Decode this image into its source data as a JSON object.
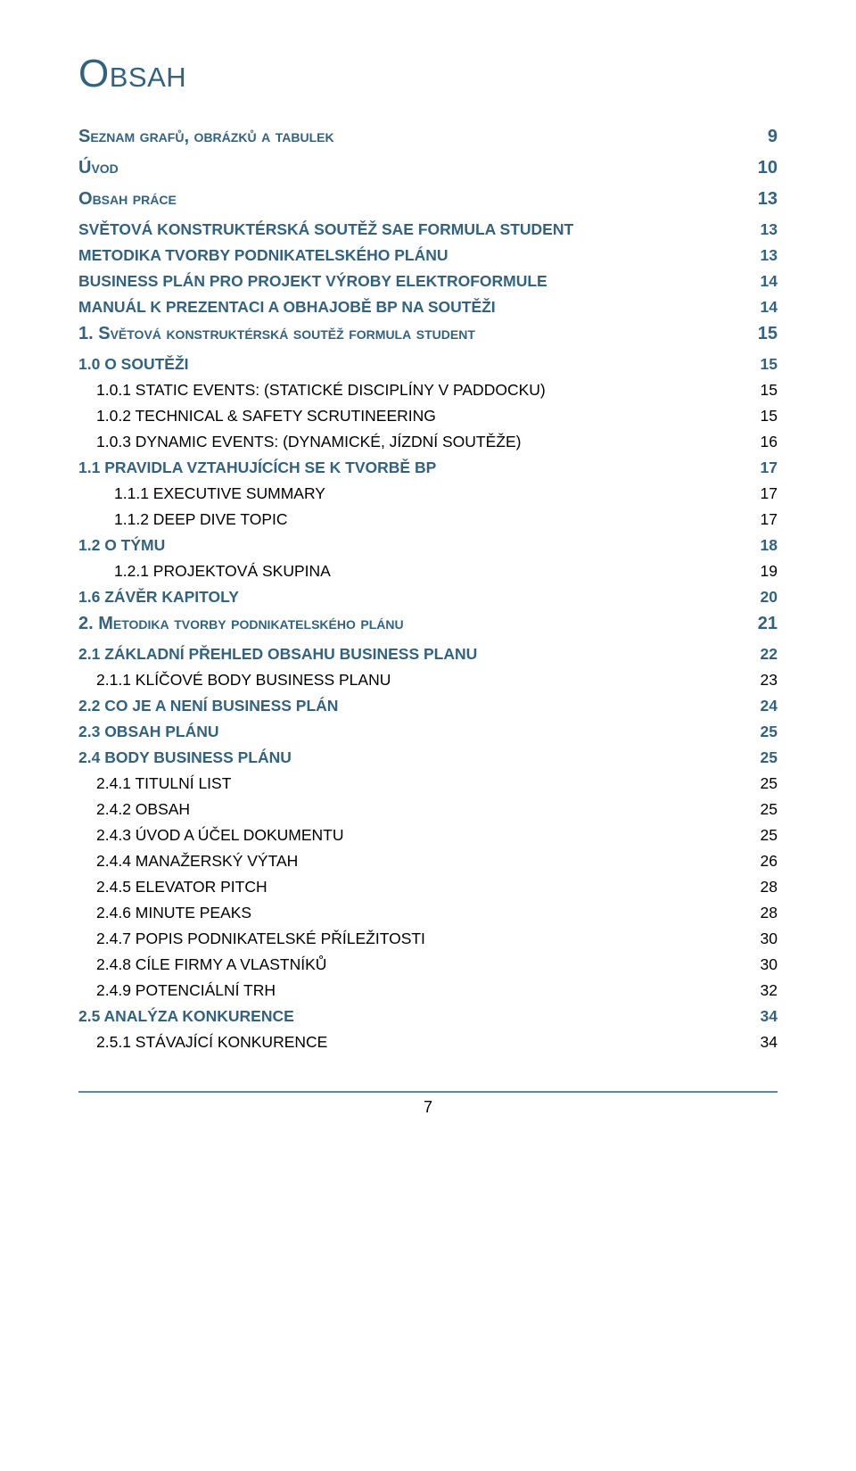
{
  "colors": {
    "blue": "#33627f",
    "black": "#000000",
    "rule": "#5b88a3"
  },
  "title_first": "O",
  "title_rest": "bsah",
  "page_number": "7",
  "entries": [
    {
      "level": "A",
      "label_first": "S",
      "label_rest": "eznam Grafů, Obrázků a Tabulek",
      "page": "9"
    },
    {
      "level": "A",
      "label_first": "Ú",
      "label_rest": "vod",
      "page": "10"
    },
    {
      "level": "A",
      "label_first": "O",
      "label_rest": "bsah práce",
      "page": "13"
    },
    {
      "level": "B",
      "label": "SVĚTOVÁ KONSTRUKTÉRSKÁ SOUTĚŽ SAE FORMULA STUDENT",
      "page": "13"
    },
    {
      "level": "B",
      "label": "METODIKA TVORBY PODNIKATELSKÉHO PLÁNU",
      "page": "13"
    },
    {
      "level": "B",
      "label": "BUSINESS PLÁN PRO PROJEKT VÝROBY ELEKTROFORMULE",
      "page": "14"
    },
    {
      "level": "B",
      "label": "MANUÁL K PREZENTACI A OBHAJOBĚ BP NA SOUTĚŽI",
      "page": "14"
    },
    {
      "level": "A",
      "label_first": "1. S",
      "label_rest": "větová konstruktérská soutěž Formula Student",
      "page": "15"
    },
    {
      "level": "B",
      "label": "1.0 O SOUTĚŽI",
      "page": "15"
    },
    {
      "level": "C",
      "label": "1.0.1 STATIC EVENTS: (STATICKÉ DISCIPLÍNY V PADDOCKU)",
      "page": "15"
    },
    {
      "level": "C",
      "label": "1.0.2 TECHNICAL & SAFETY SCRUTINEERING",
      "page": "15"
    },
    {
      "level": "C",
      "label": "1.0.3 DYNAMIC EVENTS: (DYNAMICKÉ, JÍZDNÍ SOUTĚŽE)",
      "page": "16"
    },
    {
      "level": "B",
      "label": "1.1 PRAVIDLA VZTAHUJÍCÍCH SE K TVORBĚ BP",
      "page": "17"
    },
    {
      "level": "D",
      "label": "1.1.1 EXECUTIVE SUMMARY",
      "page": "17"
    },
    {
      "level": "D",
      "label": "1.1.2 DEEP DIVE TOPIC",
      "page": "17"
    },
    {
      "level": "B",
      "label": "1.2 O TÝMU",
      "page": "18"
    },
    {
      "level": "D",
      "label": "1.2.1 PROJEKTOVÁ SKUPINA",
      "page": "19"
    },
    {
      "level": "B",
      "label": "1.6 ZÁVĚR KAPITOLY",
      "page": "20"
    },
    {
      "level": "A",
      "label_first": "2. M",
      "label_rest": "etodika tvorby Podnikatelského plánu",
      "page": "21"
    },
    {
      "level": "B",
      "label": "2.1 ZÁKLADNÍ PŘEHLED OBSAHU BUSINESS PLANU",
      "page": "22"
    },
    {
      "level": "C",
      "label": "2.1.1 KLÍČOVÉ BODY BUSINESS PLANU",
      "page": "23"
    },
    {
      "level": "B",
      "label": "2.2 CO JE A NENÍ BUSINESS PLÁN",
      "page": "24"
    },
    {
      "level": "B",
      "label": "2.3 OBSAH PLÁNU",
      "page": "25"
    },
    {
      "level": "B",
      "label": "2.4 BODY BUSINESS PLÁNU",
      "page": "25"
    },
    {
      "level": "C",
      "label": "2.4.1 TITULNÍ LIST",
      "page": "25"
    },
    {
      "level": "C",
      "label": "2.4.2 OBSAH",
      "page": "25"
    },
    {
      "level": "C",
      "label": "2.4.3 ÚVOD A ÚČEL DOKUMENTU",
      "page": "25"
    },
    {
      "level": "C",
      "label": "2.4.4 MANAŽERSKÝ VÝTAH",
      "page": "26"
    },
    {
      "level": "C",
      "label": "2.4.5 ELEVATOR PITCH",
      "page": "28"
    },
    {
      "level": "C",
      "label": "2.4.6 MINUTE PEAKS",
      "page": "28"
    },
    {
      "level": "C",
      "label": "2.4.7 POPIS PODNIKATELSKÉ PŘÍLEŽITOSTI",
      "page": "30"
    },
    {
      "level": "C",
      "label": "2.4.8 CÍLE FIRMY A VLASTNÍKŮ",
      "page": "30"
    },
    {
      "level": "C",
      "label": "2.4.9 POTENCIÁLNÍ TRH",
      "page": "32"
    },
    {
      "level": "B",
      "label": "2.5 ANALÝZA KONKURENCE",
      "page": "34"
    },
    {
      "level": "C",
      "label": "2.5.1 STÁVAJÍCÍ KONKURENCE",
      "page": "34"
    }
  ]
}
